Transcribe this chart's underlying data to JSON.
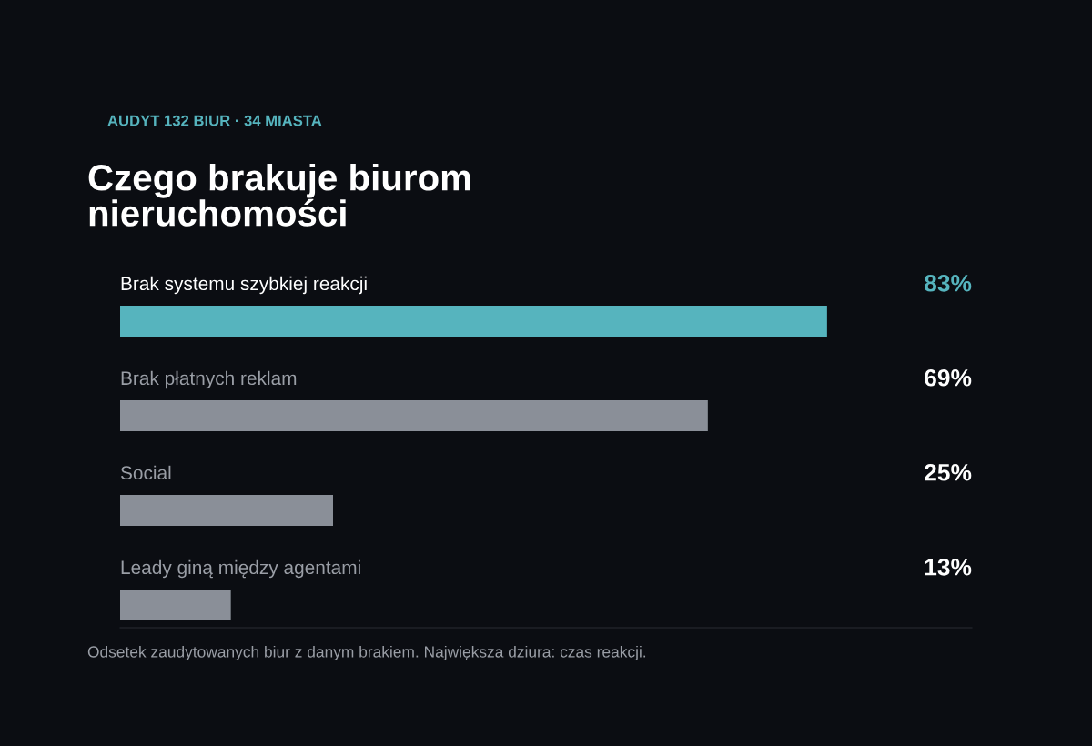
{
  "chart_data": {
    "type": "bar",
    "orientation": "horizontal",
    "subtitle": "AUDYT 132 BIUR · 34 MIASTA",
    "title": "Czego brakuje biurom\nnieruchomości",
    "categories": [
      "Brak systemu szybkiej reakcji",
      "Brak płatnych reklam",
      "Social",
      "Leady giną między agentami"
    ],
    "values": [
      83,
      69,
      25,
      13
    ],
    "colors": [
      "#56b4be",
      "#8a8f98",
      "#8a8f98",
      "#8a8f98"
    ],
    "value_labels": [
      "83%",
      "69%",
      "25%",
      "13%"
    ],
    "xlim": [
      0,
      100
    ],
    "annotations": [
      "Odsetek zaudytowanych biur z danym brakiem. Największa dziura: czas reakcji."
    ]
  }
}
